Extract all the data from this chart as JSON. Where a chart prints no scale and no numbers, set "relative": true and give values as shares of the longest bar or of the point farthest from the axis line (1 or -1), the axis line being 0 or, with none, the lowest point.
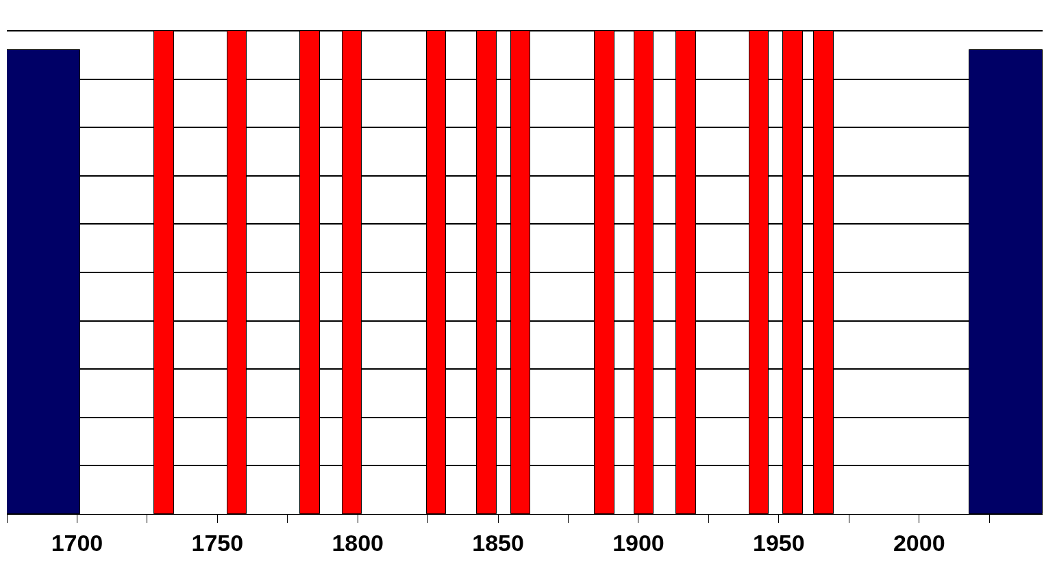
{
  "chart_data": {
    "type": "bar",
    "relative": true,
    "grid": "y",
    "xlim": [
      1675,
      2044
    ],
    "xticks": [
      {
        "value": 1675,
        "label": null
      },
      {
        "value": 1700,
        "label": "1700"
      },
      {
        "value": 1725,
        "label": null
      },
      {
        "value": 1750,
        "label": "1750"
      },
      {
        "value": 1775,
        "label": null
      },
      {
        "value": 1800,
        "label": "1800"
      },
      {
        "value": 1825,
        "label": null
      },
      {
        "value": 1850,
        "label": "1850"
      },
      {
        "value": 1875,
        "label": null
      },
      {
        "value": 1900,
        "label": "1900"
      },
      {
        "value": 1925,
        "label": null
      },
      {
        "value": 1950,
        "label": "1950"
      },
      {
        "value": 1975,
        "label": null
      },
      {
        "value": 2000,
        "label": "2000"
      },
      {
        "value": 2025,
        "label": null
      }
    ],
    "tick_labels": "x",
    "series": [
      {
        "color": "#000066",
        "x": [
          1688,
          2031
        ],
        "values": [
          0.96,
          0.96
        ]
      },
      {
        "color": "#ff0000",
        "x": [
          1731,
          1757,
          1783,
          1798,
          1828,
          1846,
          1858,
          1888,
          1902,
          1917,
          1943,
          1955,
          1966
        ],
        "values": [
          1,
          1,
          1,
          1,
          1,
          1,
          1,
          1,
          1,
          1,
          1,
          1,
          1
        ]
      }
    ]
  }
}
